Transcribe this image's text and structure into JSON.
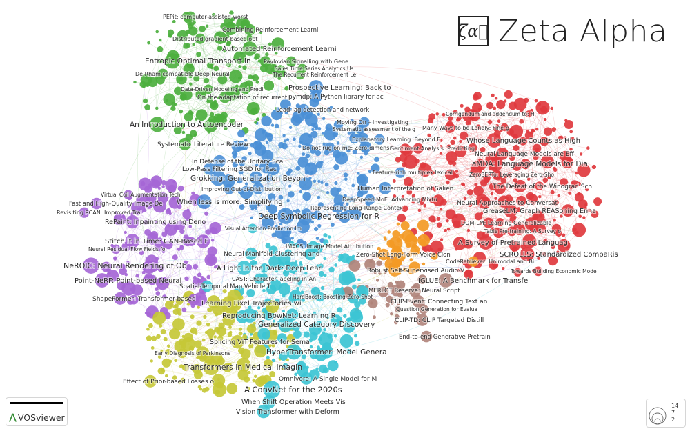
{
  "brand": {
    "logo_symbol": "ζα⃗",
    "logo_text": "Zeta Alpha",
    "tool_name": "VOSviewer",
    "tool_icon": "vosviewer-logo-icon"
  },
  "size_legend": {
    "values": [
      "14",
      "7",
      "2"
    ]
  },
  "cluster_colors": {
    "green": "#4caf3e",
    "blue": "#4a8fd6",
    "red": "#e0393e",
    "purple": "#a566d6",
    "yellow": "#c6c837",
    "cyan": "#3cc4d4",
    "orange": "#f39a25",
    "brown": "#b0837a"
  },
  "labels": [
    {
      "text": "PEPit: computer-assisted worst",
      "cluster": "green"
    },
    {
      "text": "Combining Reinforcement Learni",
      "cluster": "green"
    },
    {
      "text": "Distributed gradient-based opt",
      "cluster": "green"
    },
    {
      "text": "Automated Reinforcement Learni",
      "cluster": "green"
    },
    {
      "text": "Entropic Optimal Transport in",
      "cluster": "green"
    },
    {
      "text": "Pavlovian Signalling with Gene",
      "cluster": "green"
    },
    {
      "text": "Sales Time Series Analytics Us",
      "cluster": "green"
    },
    {
      "text": "The Recurrent Reinforcement Le",
      "cluster": "green"
    },
    {
      "text": "De Rham compatible Deep Neural",
      "cluster": "green"
    },
    {
      "text": "Data-Driven Modeling and Predi",
      "cluster": "green"
    },
    {
      "text": "On the adaptation of recurrent",
      "cluster": "green"
    },
    {
      "text": "An Introduction to Autoencoder",
      "cluster": "green"
    },
    {
      "text": "Systematic Literature Review:",
      "cluster": "green"
    },
    {
      "text": "Prospective Learning: Back to",
      "cluster": "blue"
    },
    {
      "text": "pymdp: A Python library for ac",
      "cluster": "blue"
    },
    {
      "text": "Lead-lag detection and network",
      "cluster": "blue"
    },
    {
      "text": "Moving On – Investigating I",
      "cluster": "blue"
    },
    {
      "text": "Systematic assessment of the g",
      "cluster": "blue"
    },
    {
      "text": "Explanatory Learning: Beyond E",
      "cluster": "blue"
    },
    {
      "text": "Do not rug on me: Zero-dimensi",
      "cluster": "blue"
    },
    {
      "text": "In Defense of the Unitary Scal",
      "cluster": "blue"
    },
    {
      "text": "Low-Pass Filtering SGD for Rec",
      "cluster": "blue"
    },
    {
      "text": "Grokking: Generalization Beyon",
      "cluster": "blue"
    },
    {
      "text": "Feature-rich multiplex lexical",
      "cluster": "blue"
    },
    {
      "text": "Human Interpretation of Salien",
      "cluster": "blue"
    },
    {
      "text": "Improving Out-of-Distribution",
      "cluster": "blue"
    },
    {
      "text": "DeepSpeed-MoE: Advancing Mixtu",
      "cluster": "blue"
    },
    {
      "text": "When less is more: Simplifying",
      "cluster": "blue"
    },
    {
      "text": "Representing Long-Range Contex",
      "cluster": "blue"
    },
    {
      "text": "Deep Symbolic Regression for R",
      "cluster": "blue"
    },
    {
      "text": "Corrigendum and addendum to: H",
      "cluster": "red"
    },
    {
      "text": "Many Ways to be Lonely: Fine-g",
      "cluster": "red"
    },
    {
      "text": "Sentiment Analysis: Predicting",
      "cluster": "red"
    },
    {
      "text": "Whose Language Counts as High",
      "cluster": "red"
    },
    {
      "text": "Neural Language Models are Eff",
      "cluster": "red"
    },
    {
      "text": "LaMDA: Language Models for Dia",
      "cluster": "red"
    },
    {
      "text": "ZeroBERTo: Leveraging Zero-Sho",
      "cluster": "red"
    },
    {
      "text": "The Defeat of the Winograd Sch",
      "cluster": "red"
    },
    {
      "text": "Neural Approaches to Conversat",
      "cluster": "red"
    },
    {
      "text": "GreaseLM: Graph REASoning Enha",
      "cluster": "red"
    },
    {
      "text": "DOM-LM: Learning Generalizable",
      "cluster": "red"
    },
    {
      "text": "Table Pre-training: A Survey o",
      "cluster": "red"
    },
    {
      "text": "A Survey of Pretrained Languag",
      "cluster": "red"
    },
    {
      "text": "SCROLLS: Standardized CompaRis",
      "cluster": "red"
    },
    {
      "text": "Towards Building Economic Mode",
      "cluster": "red"
    },
    {
      "text": "CodeRetriever: Unimodal and Bi",
      "cluster": "orange"
    },
    {
      "text": "Zero-Shot Long-Form Voice Clon",
      "cluster": "orange"
    },
    {
      "text": "Robust Self-Supervised Audio-V",
      "cluster": "orange"
    },
    {
      "text": "IGLUE: A Benchmark for Transfe",
      "cluster": "brown"
    },
    {
      "text": "MERLOT Reserve: Neural Script",
      "cluster": "brown"
    },
    {
      "text": "CLIP-Event: Connecting Text an",
      "cluster": "brown"
    },
    {
      "text": "Question Generation for Evalua",
      "cluster": "brown"
    },
    {
      "text": "CLIP-TD: CLIP Targeted Distill",
      "cluster": "brown"
    },
    {
      "text": "End-to-end Generative Pretrain",
      "cluster": "brown"
    },
    {
      "text": "Virtual Coil Augmentation Tech",
      "cluster": "purple"
    },
    {
      "text": "Fast and High-Quality Image De",
      "cluster": "purple"
    },
    {
      "text": "Revisiting RCAN: Improved Trai",
      "cluster": "purple"
    },
    {
      "text": "RePaint: Inpainting using Deno",
      "cluster": "purple"
    },
    {
      "text": "Stitch it in Time: GAN-Based F",
      "cluster": "purple"
    },
    {
      "text": "Neural Residual Flow Fields fo",
      "cluster": "purple"
    },
    {
      "text": "NeROIC: Neural Rendering of Ob",
      "cluster": "purple"
    },
    {
      "text": "Point-NeRF: Point-based Neural",
      "cluster": "purple"
    },
    {
      "text": "ShapeFormer: Transformer-based",
      "cluster": "purple"
    },
    {
      "text": "Visual Attention Prediction Im",
      "cluster": "cyan"
    },
    {
      "text": "IMACS: Image Model Attribution",
      "cluster": "cyan"
    },
    {
      "text": "Neural Manifold Clustering and",
      "cluster": "cyan"
    },
    {
      "text": "A Light in the Dark: Deep Lear",
      "cluster": "cyan"
    },
    {
      "text": "CAST: Character labeling in An",
      "cluster": "cyan"
    },
    {
      "text": "Spatial-Temporal Map Vehicle T",
      "cluster": "cyan"
    },
    {
      "text": "HardBoost: Boosting Zero-Shot",
      "cluster": "cyan"
    },
    {
      "text": "Learning Pixel Trajectories wi",
      "cluster": "yellow"
    },
    {
      "text": "Reproducing BowNet: Learning R",
      "cluster": "cyan"
    },
    {
      "text": "Generalized Category Discovery",
      "cluster": "cyan"
    },
    {
      "text": "Splicing ViT Features for Sema",
      "cluster": "yellow"
    },
    {
      "text": "Early Diagnosis of Parkinsons",
      "cluster": "yellow"
    },
    {
      "text": "HyperTransformer: Model Genera",
      "cluster": "cyan"
    },
    {
      "text": "Transformers in Medical Imagin",
      "cluster": "yellow"
    },
    {
      "text": "Omnivore: A Single Model for M",
      "cluster": "cyan"
    },
    {
      "text": "Effect of Prior-based Losses o",
      "cluster": "yellow"
    },
    {
      "text": "A ConvNet for the 2020s",
      "cluster": "cyan"
    },
    {
      "text": "When Shift Operation Meets Vis",
      "cluster": "cyan"
    },
    {
      "text": "Vision Transformer with Deform",
      "cluster": "cyan"
    }
  ]
}
